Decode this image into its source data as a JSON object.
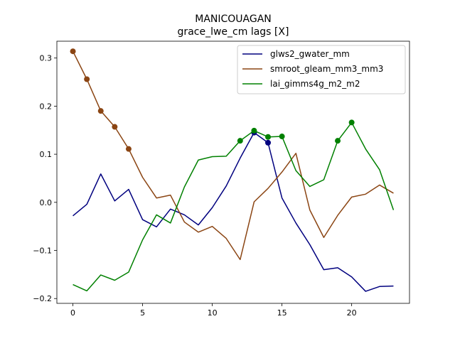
{
  "chart_data": {
    "type": "line",
    "title": "MANICOUAGAN",
    "subtitle": "grace_lwe_cm lags [X]",
    "xlabel": "",
    "ylabel": "",
    "xlim": [
      -1.15,
      24.15
    ],
    "ylim": [
      -0.21,
      0.335
    ],
    "xticks": [
      0,
      5,
      10,
      15,
      20
    ],
    "yticks": [
      -0.2,
      -0.1,
      0.0,
      0.1,
      0.2,
      0.3
    ],
    "ytick_labels": [
      "−0.2",
      "−0.1",
      "0.0",
      "0.1",
      "0.2",
      "0.3"
    ],
    "legend_position": "top-right",
    "x": [
      0,
      1,
      2,
      3,
      4,
      5,
      6,
      7,
      8,
      9,
      10,
      11,
      12,
      13,
      14,
      15,
      16,
      17,
      18,
      19,
      20,
      21,
      22,
      23
    ],
    "series": [
      {
        "name": "glws2_gwater_mm",
        "color": "#00007f",
        "values": [
          -0.028,
          -0.004,
          0.059,
          0.003,
          0.027,
          -0.036,
          -0.051,
          -0.014,
          -0.026,
          -0.047,
          -0.011,
          0.034,
          0.092,
          0.145,
          0.124,
          0.009,
          -0.043,
          -0.088,
          -0.14,
          -0.136,
          -0.155,
          -0.185,
          -0.175,
          -0.174
        ],
        "markers": [
          13,
          14
        ]
      },
      {
        "name": "smroot_gleam_mm3_mm3",
        "color": "#8b4513",
        "values": [
          0.314,
          0.256,
          0.19,
          0.157,
          0.111,
          0.052,
          0.009,
          0.015,
          -0.041,
          -0.062,
          -0.05,
          -0.075,
          -0.119,
          0.001,
          0.029,
          0.063,
          0.102,
          -0.016,
          -0.073,
          -0.027,
          0.011,
          0.017,
          0.036,
          0.019
        ],
        "markers": [
          0,
          1,
          2,
          3,
          4
        ]
      },
      {
        "name": "lai_gimms4g_m2_m2",
        "color": "#008000",
        "values": [
          -0.171,
          -0.184,
          -0.151,
          -0.162,
          -0.145,
          -0.078,
          -0.026,
          -0.043,
          0.032,
          0.088,
          0.095,
          0.096,
          0.128,
          0.149,
          0.136,
          0.137,
          0.066,
          0.033,
          0.047,
          0.128,
          0.166,
          0.111,
          0.068,
          -0.016
        ],
        "markers": [
          12,
          13,
          14,
          15,
          19,
          20
        ]
      }
    ]
  }
}
